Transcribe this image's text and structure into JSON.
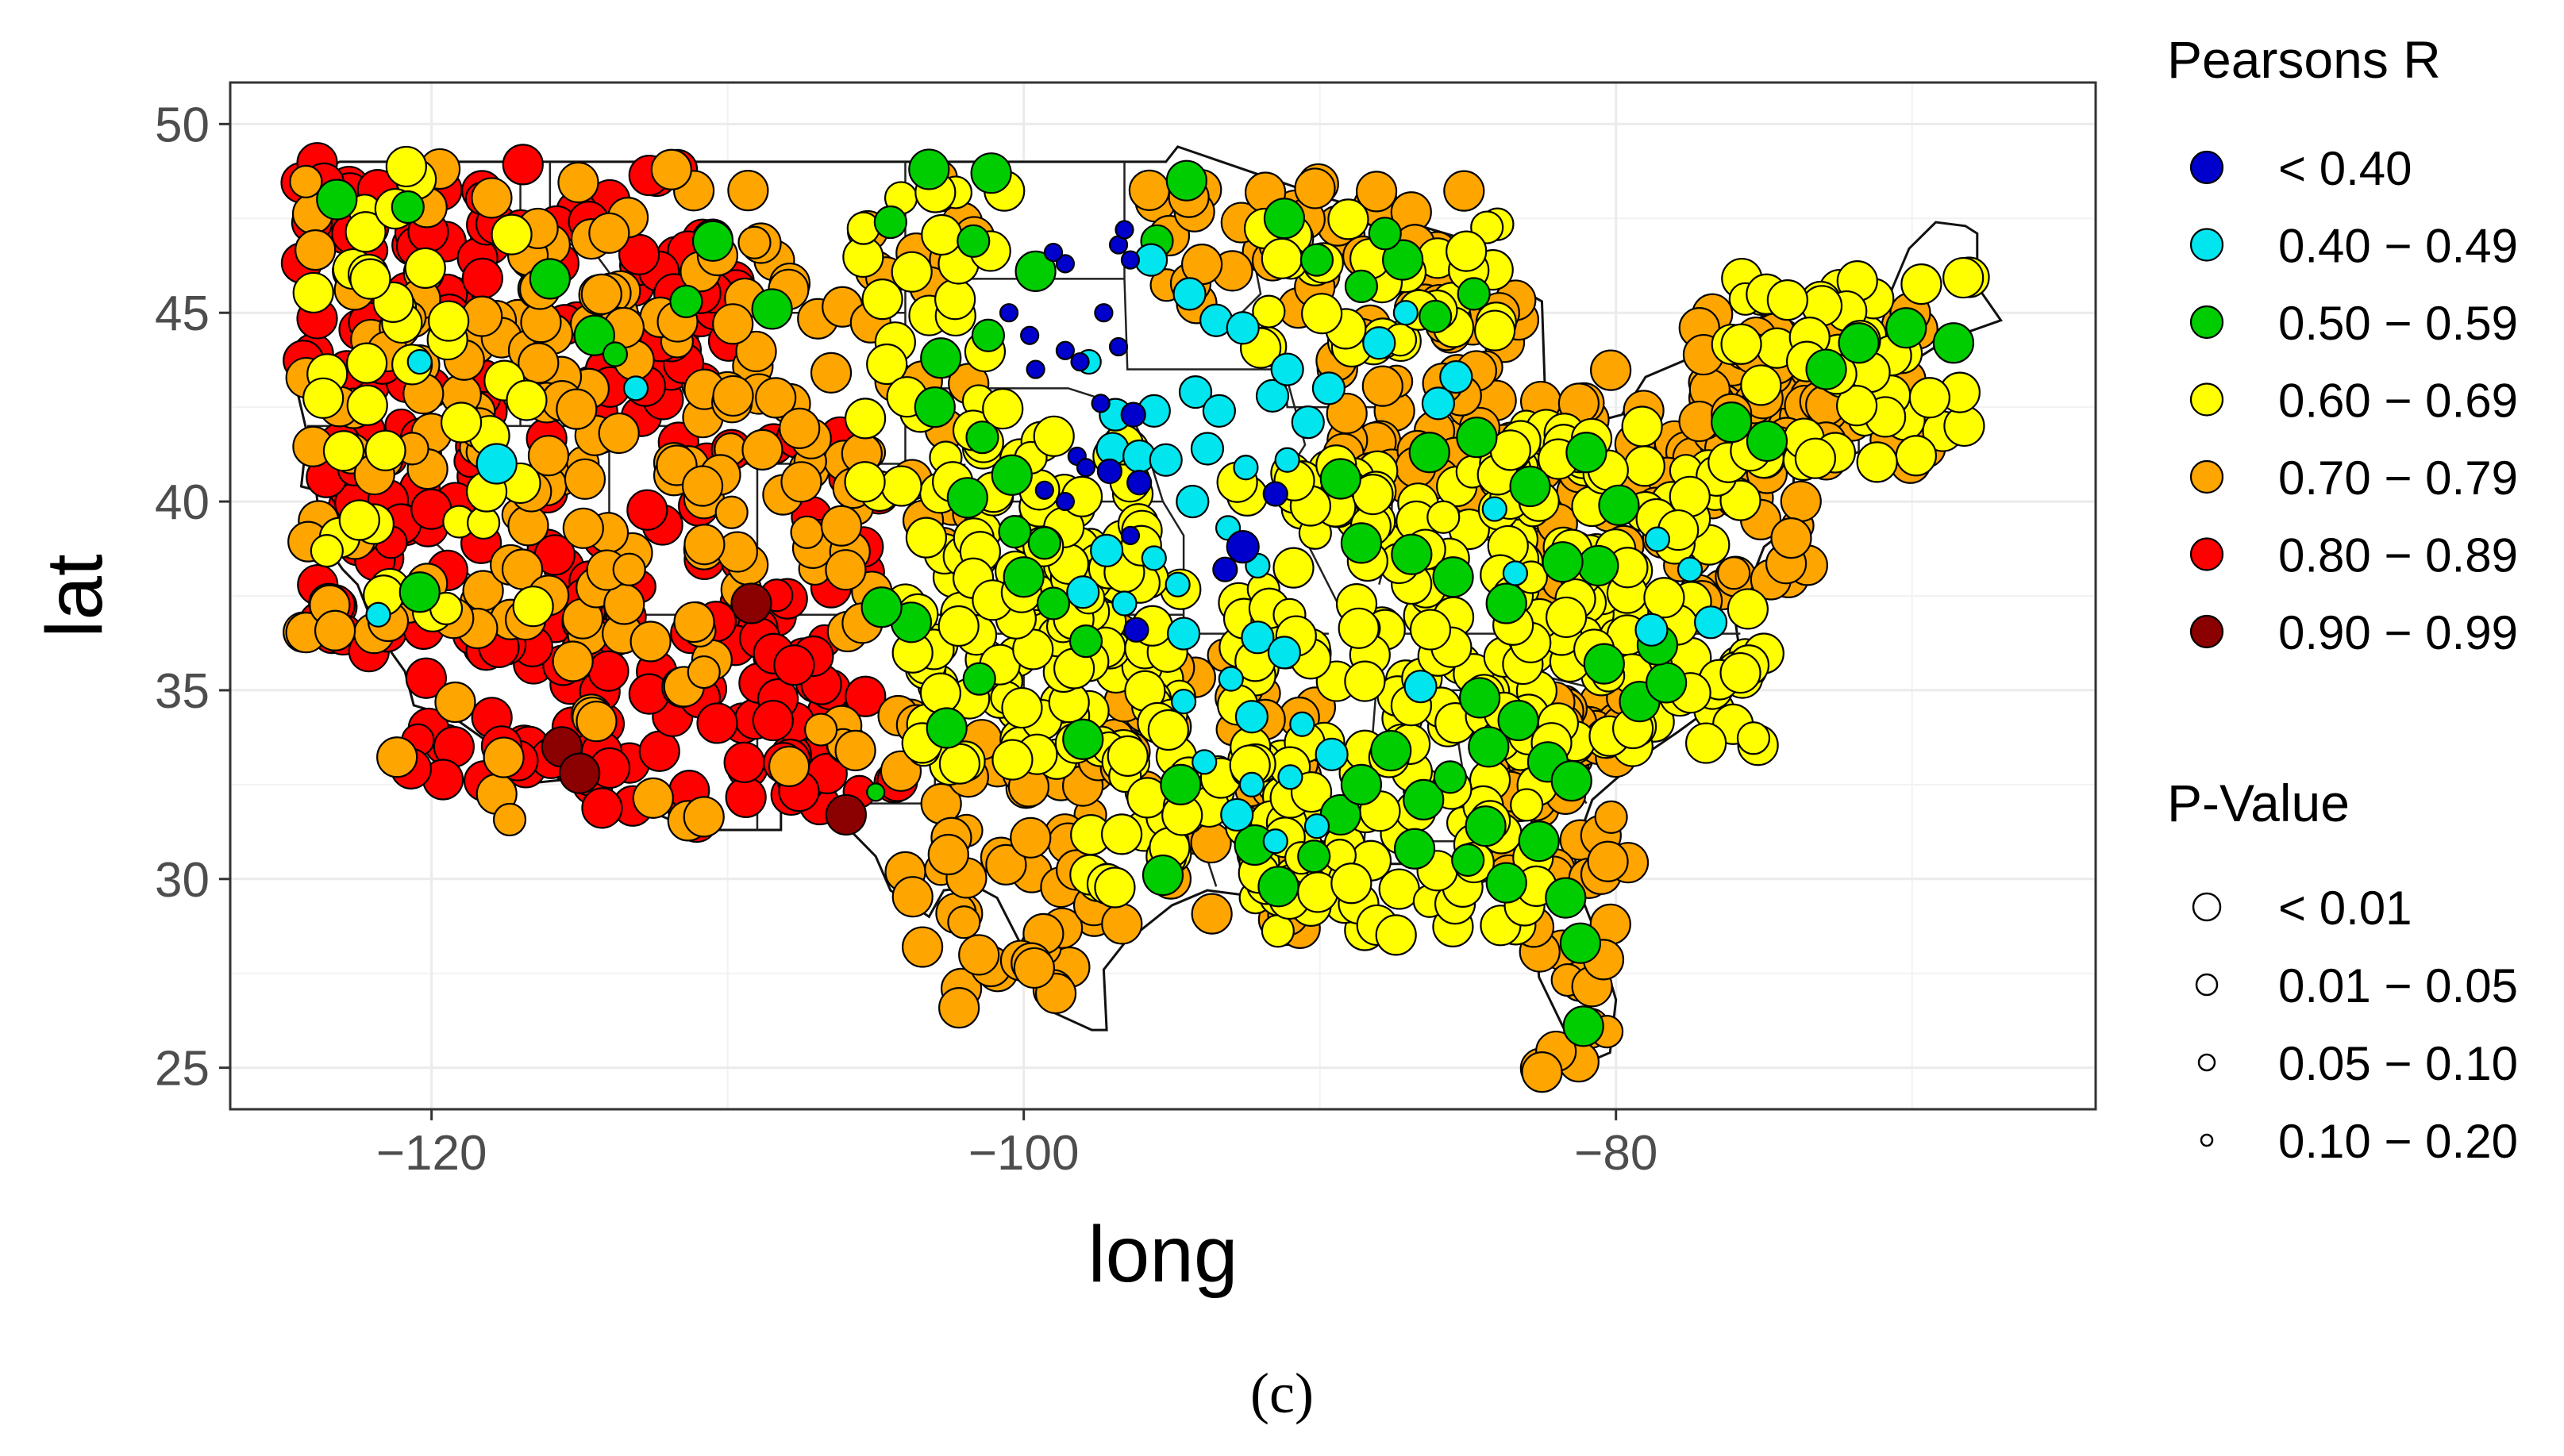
{
  "panel_label": "(c)",
  "chart_data": {
    "type": "scatter",
    "map": "contiguous-united-states",
    "xlabel": "long",
    "ylabel": "lat",
    "xlim": [
      -126.8,
      -63.8
    ],
    "ylim": [
      23.9,
      51.1
    ],
    "xticks": [
      -120,
      -100,
      -80
    ],
    "yticks": [
      25,
      30,
      35,
      40,
      45,
      50
    ],
    "xtick_labels": [
      "−120",
      "−100",
      "−80"
    ],
    "ytick_labels": [
      "25",
      "30",
      "35",
      "40",
      "45",
      "50"
    ],
    "grid": true,
    "legend_position": "right",
    "legend": {
      "color": {
        "title": "Pearsons R",
        "entries": [
          {
            "label": "< 0.40",
            "color": "#0000cd"
          },
          {
            "label": "0.40 − 0.49",
            "color": "#00e5ee"
          },
          {
            "label": "0.50 − 0.59",
            "color": "#00cd00"
          },
          {
            "label": "0.60 − 0.69",
            "color": "#ffff00"
          },
          {
            "label": "0.70 − 0.79",
            "color": "#ffa500"
          },
          {
            "label": "0.80 − 0.89",
            "color": "#ff0000"
          },
          {
            "label": "0.90 − 0.99",
            "color": "#8b0000"
          }
        ]
      },
      "size": {
        "title": "P-Value",
        "entries": [
          {
            "label": "< 0.01",
            "level": 0
          },
          {
            "label": "0.01 − 0.05",
            "level": 1
          },
          {
            "label": "0.05 − 0.10",
            "level": 2
          },
          {
            "label": "0.10 − 0.20",
            "level": 3
          }
        ]
      }
    },
    "series": [
      {
        "color_class": 0,
        "points": [
          [
            -100.5,
            45.0
          ],
          [
            -99.8,
            44.4
          ],
          [
            -98.6,
            44.0
          ],
          [
            -97.3,
            45.0
          ],
          [
            -96.8,
            44.1
          ],
          [
            -98.1,
            43.7
          ],
          [
            -99.6,
            43.5
          ],
          [
            -97.4,
            42.6
          ],
          [
            -98.2,
            41.2
          ],
          [
            -99.3,
            40.3
          ],
          [
            -96.8,
            46.8
          ],
          [
            -96.6,
            47.2
          ],
          [
            -96.4,
            46.4
          ],
          [
            -98.6,
            46.3
          ],
          [
            -99.0,
            46.6
          ],
          [
            -96.1,
            40.5
          ],
          [
            -97.1,
            40.8
          ],
          [
            -96.3,
            42.3
          ],
          [
            -91.5,
            40.2
          ],
          [
            -92.6,
            38.8
          ],
          [
            -96.2,
            36.6
          ],
          [
            -93.2,
            38.2
          ],
          [
            -98.6,
            40.0
          ],
          [
            -96.4,
            39.1
          ],
          [
            -97.9,
            40.9
          ]
        ],
        "p": [
          3,
          3,
          3,
          3,
          3,
          3,
          3,
          3,
          3,
          3,
          3,
          3,
          3,
          3,
          3,
          2,
          2,
          2,
          2,
          1,
          2,
          2,
          3,
          3,
          3
        ]
      },
      {
        "color_class": 1,
        "points": [
          [
            -97.8,
            43.7
          ],
          [
            -96.9,
            42.3
          ],
          [
            -95.6,
            42.4
          ],
          [
            -94.2,
            42.9
          ],
          [
            -93.4,
            42.4
          ],
          [
            -91.6,
            42.8
          ],
          [
            -90.4,
            42.1
          ],
          [
            -97.0,
            41.4
          ],
          [
            -96.1,
            41.2
          ],
          [
            -95.2,
            41.1
          ],
          [
            -93.8,
            41.4
          ],
          [
            -92.5,
            40.9
          ],
          [
            -91.1,
            41.1
          ],
          [
            -94.3,
            40.0
          ],
          [
            -93.1,
            39.3
          ],
          [
            -92.1,
            38.3
          ],
          [
            -95.6,
            38.5
          ],
          [
            -94.8,
            37.8
          ],
          [
            -97.2,
            38.7
          ],
          [
            -98.0,
            37.6
          ],
          [
            -96.6,
            37.3
          ],
          [
            -94.6,
            36.5
          ],
          [
            -92.1,
            36.4
          ],
          [
            -91.2,
            36.0
          ],
          [
            -93.0,
            35.3
          ],
          [
            -94.6,
            34.7
          ],
          [
            -92.3,
            34.3
          ],
          [
            -90.6,
            34.1
          ],
          [
            -89.6,
            33.3
          ],
          [
            -91.0,
            32.7
          ],
          [
            -92.3,
            32.5
          ],
          [
            -93.9,
            33.1
          ],
          [
            -92.8,
            31.7
          ],
          [
            -91.5,
            31.0
          ],
          [
            -90.1,
            31.4
          ],
          [
            -86.6,
            35.1
          ],
          [
            -84.1,
            39.8
          ],
          [
            -83.4,
            38.1
          ],
          [
            -78.6,
            39.0
          ],
          [
            -77.5,
            38.2
          ],
          [
            -76.8,
            36.8
          ],
          [
            -78.8,
            36.6
          ],
          [
            -120.4,
            43.7
          ],
          [
            -117.8,
            41.0
          ],
          [
            -95.7,
            46.4
          ],
          [
            -94.4,
            45.5
          ],
          [
            -93.5,
            44.8
          ],
          [
            -92.6,
            44.6
          ],
          [
            -91.1,
            43.5
          ],
          [
            -89.7,
            43.0
          ],
          [
            -88.0,
            44.2
          ],
          [
            -87.1,
            45.0
          ],
          [
            -86.0,
            42.6
          ],
          [
            -85.4,
            43.3
          ],
          [
            -121.8,
            37.0
          ],
          [
            -113.1,
            43.0
          ]
        ],
        "p": [
          2,
          1,
          1,
          1,
          1,
          1,
          1,
          1,
          1,
          1,
          1,
          2,
          2,
          1,
          2,
          2,
          2,
          2,
          1,
          1,
          2,
          1,
          1,
          1,
          2,
          2,
          1,
          2,
          1,
          2,
          2,
          2,
          1,
          2,
          2,
          1,
          2,
          2,
          2,
          2,
          1,
          1,
          2,
          0,
          1,
          1,
          1,
          1,
          1,
          1,
          1,
          2,
          1,
          1,
          2,
          2
        ]
      },
      {
        "color_class": 2,
        "points": [
          [
            -103.2,
            48.8
          ],
          [
            -101.1,
            48.7
          ],
          [
            -101.7,
            46.9
          ],
          [
            -99.6,
            46.1
          ],
          [
            -101.2,
            44.4
          ],
          [
            -102.8,
            43.8
          ],
          [
            -103.0,
            42.5
          ],
          [
            -101.4,
            41.7
          ],
          [
            -100.4,
            40.7
          ],
          [
            -101.9,
            40.1
          ],
          [
            -100.3,
            39.2
          ],
          [
            -99.3,
            38.9
          ],
          [
            -100.0,
            38.0
          ],
          [
            -99.0,
            37.3
          ],
          [
            -97.9,
            36.3
          ],
          [
            -101.5,
            35.3
          ],
          [
            -102.6,
            34.0
          ],
          [
            -103.8,
            36.8
          ],
          [
            -104.8,
            37.2
          ],
          [
            -98.0,
            33.7
          ],
          [
            -94.7,
            32.5
          ],
          [
            -95.3,
            30.1
          ],
          [
            -92.2,
            30.9
          ],
          [
            -91.4,
            29.8
          ],
          [
            -90.2,
            30.6
          ],
          [
            -89.3,
            31.7
          ],
          [
            -88.6,
            32.5
          ],
          [
            -87.6,
            33.4
          ],
          [
            -86.5,
            32.1
          ],
          [
            -85.6,
            32.7
          ],
          [
            -84.3,
            33.5
          ],
          [
            -84.6,
            34.8
          ],
          [
            -83.3,
            34.2
          ],
          [
            -82.3,
            33.1
          ],
          [
            -81.5,
            32.6
          ],
          [
            -82.6,
            31.0
          ],
          [
            -84.4,
            31.4
          ],
          [
            -86.8,
            30.8
          ],
          [
            -85.0,
            30.5
          ],
          [
            -83.7,
            29.9
          ],
          [
            -81.7,
            29.5
          ],
          [
            -81.2,
            28.3
          ],
          [
            -81.1,
            26.1
          ],
          [
            -80.4,
            35.7
          ],
          [
            -79.2,
            34.7
          ],
          [
            -78.3,
            35.2
          ],
          [
            -78.6,
            36.2
          ],
          [
            -80.6,
            38.3
          ],
          [
            -79.9,
            39.9
          ],
          [
            -81.8,
            38.4
          ],
          [
            -83.7,
            37.3
          ],
          [
            -85.5,
            38.0
          ],
          [
            -86.9,
            38.6
          ],
          [
            -88.6,
            38.9
          ],
          [
            -89.3,
            40.6
          ],
          [
            -86.3,
            41.3
          ],
          [
            -84.7,
            41.7
          ],
          [
            -82.9,
            40.4
          ],
          [
            -81.0,
            41.3
          ],
          [
            -76.1,
            42.1
          ],
          [
            -74.9,
            41.6
          ],
          [
            -72.9,
            43.5
          ],
          [
            -71.8,
            44.2
          ],
          [
            -70.2,
            44.6
          ],
          [
            -68.6,
            44.2
          ],
          [
            -123.2,
            48.0
          ],
          [
            -120.8,
            47.8
          ],
          [
            -116.0,
            45.9
          ],
          [
            -114.5,
            44.4
          ],
          [
            -110.5,
            46.9
          ],
          [
            -108.5,
            45.1
          ],
          [
            -104.5,
            47.4
          ],
          [
            -91.2,
            47.5
          ],
          [
            -90.1,
            46.4
          ],
          [
            -88.6,
            45.7
          ],
          [
            -87.2,
            46.4
          ],
          [
            -86.1,
            44.9
          ],
          [
            -84.8,
            45.5
          ],
          [
            -87.8,
            47.1
          ],
          [
            -95.5,
            46.9
          ],
          [
            -94.5,
            48.5
          ],
          [
            -120.4,
            37.6
          ],
          [
            -105.0,
            32.3
          ],
          [
            -111.4,
            45.3
          ],
          [
            -113.8,
            43.9
          ]
        ],
        "p": [
          0,
          0,
          1,
          0,
          1,
          0,
          0,
          1,
          0,
          0,
          1,
          1,
          0,
          1,
          1,
          1,
          0,
          0,
          0,
          0,
          0,
          0,
          0,
          0,
          1,
          0,
          0,
          0,
          0,
          1,
          0,
          0,
          0,
          0,
          0,
          0,
          0,
          0,
          1,
          0,
          0,
          0,
          0,
          0,
          0,
          0,
          0,
          0,
          0,
          0,
          0,
          0,
          0,
          0,
          0,
          0,
          0,
          0,
          0,
          0,
          0,
          0,
          0,
          0,
          0,
          0,
          1,
          0,
          0,
          0,
          0,
          1,
          0,
          1,
          1,
          0,
          1,
          1,
          1,
          1,
          0,
          0,
          3,
          1,
          2
        ]
      }
    ],
    "dense_fill": {
      "description": "Remaining stations drawn as dense region clusters; values are [lon_min, lon_max, lat_min, lat_max, count, color_class].",
      "regions": [
        [
          -124.4,
          -117.5,
          42.0,
          49.0,
          55,
          5
        ],
        [
          -124.0,
          -118.0,
          36.0,
          42.0,
          38,
          5
        ],
        [
          -121.0,
          -114.0,
          32.5,
          37.0,
          40,
          5
        ],
        [
          -117.0,
          -109.5,
          38.0,
          49.0,
          60,
          5
        ],
        [
          -115.0,
          -106.5,
          31.5,
          38.0,
          55,
          5
        ],
        [
          -108.5,
          -104.0,
          32.0,
          42.0,
          26,
          5
        ],
        [
          -124.4,
          -113.0,
          36.0,
          49.0,
          90,
          4
        ],
        [
          -121.5,
          -103.5,
          31.5,
          45.0,
          75,
          4
        ],
        [
          -112.0,
          -101.5,
          38.5,
          49.0,
          55,
          4
        ],
        [
          -104.0,
          -97.5,
          26.5,
          34.0,
          48,
          4
        ],
        [
          -97.5,
          -90.0,
          28.5,
          37.0,
          58,
          4
        ],
        [
          -96.0,
          -85.0,
          45.0,
          48.5,
          40,
          4
        ],
        [
          -90.0,
          -83.0,
          40.0,
          45.5,
          55,
          4
        ],
        [
          -83.0,
          -73.5,
          37.0,
          43.5,
          90,
          4
        ],
        [
          -77.5,
          -69.5,
          41.0,
          45.0,
          70,
          4
        ],
        [
          -84.0,
          -79.5,
          30.0,
          35.0,
          40,
          4
        ],
        [
          -82.8,
          -80.0,
          24.7,
          29.0,
          14,
          4
        ],
        [
          -124.4,
          -116.5,
          37.0,
          49.0,
          40,
          3
        ],
        [
          -105.5,
          -100.5,
          40.0,
          48.5,
          30,
          3
        ],
        [
          -104.0,
          -94.5,
          33.0,
          39.5,
          95,
          3
        ],
        [
          -98.0,
          -90.5,
          29.5,
          33.5,
          40,
          3
        ],
        [
          -93.0,
          -82.0,
          28.5,
          41.0,
          165,
          3
        ],
        [
          -84.0,
          -75.0,
          33.5,
          42.0,
          120,
          3
        ],
        [
          -76.5,
          -68.0,
          41.0,
          46.0,
          45,
          3
        ],
        [
          -102.0,
          -96.0,
          36.5,
          42.5,
          40,
          3
        ],
        [
          -92.0,
          -84.0,
          44.0,
          47.5,
          35,
          3
        ]
      ]
    }
  }
}
